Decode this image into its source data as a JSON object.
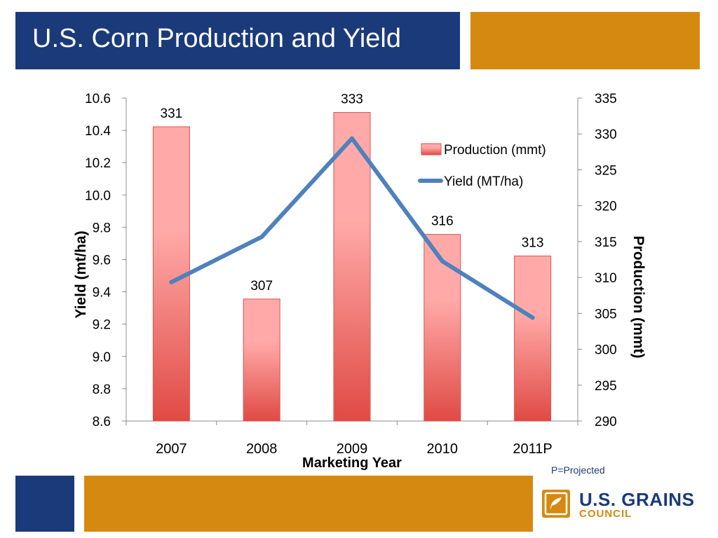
{
  "slide": {
    "title": "U.S. Corn Production and Yield",
    "footnote": "P=Projected",
    "logo_line1": "U.S. GRAINS",
    "logo_line2": "COUNCIL",
    "colors": {
      "navy": "#1b3a7a",
      "gold": "#d68910",
      "bar_top": "#ffaaa8",
      "bar_bottom": "#e04a44",
      "line": "#4f81bd"
    }
  },
  "chart_data": {
    "type": "bar",
    "categories": [
      "2007",
      "2008",
      "2009",
      "2010",
      "2011P"
    ],
    "xlabel": "Marketing Year",
    "series": [
      {
        "name": "Production (mmt)",
        "type": "bar",
        "axis": "right",
        "values": [
          331,
          307,
          333,
          316,
          313
        ],
        "labels": [
          "331",
          "307",
          "333",
          "316",
          "313"
        ]
      },
      {
        "name": "Yield (MT/ha)",
        "type": "line",
        "axis": "left",
        "values": [
          9.46,
          9.74,
          10.35,
          9.59,
          9.24
        ]
      }
    ],
    "y_left": {
      "label": "Yield (mt/ha)",
      "range": [
        8.6,
        10.6
      ],
      "ticks": [
        "8.6",
        "8.8",
        "9.0",
        "9.2",
        "9.4",
        "9.6",
        "9.8",
        "10.0",
        "10.2",
        "10.4",
        "10.6"
      ]
    },
    "y_right": {
      "label": "Production (mmt)",
      "range": [
        290,
        335
      ],
      "ticks": [
        "290",
        "295",
        "300",
        "305",
        "310",
        "315",
        "320",
        "325",
        "330",
        "335"
      ]
    },
    "legend_position": "top-right",
    "grid": false
  }
}
